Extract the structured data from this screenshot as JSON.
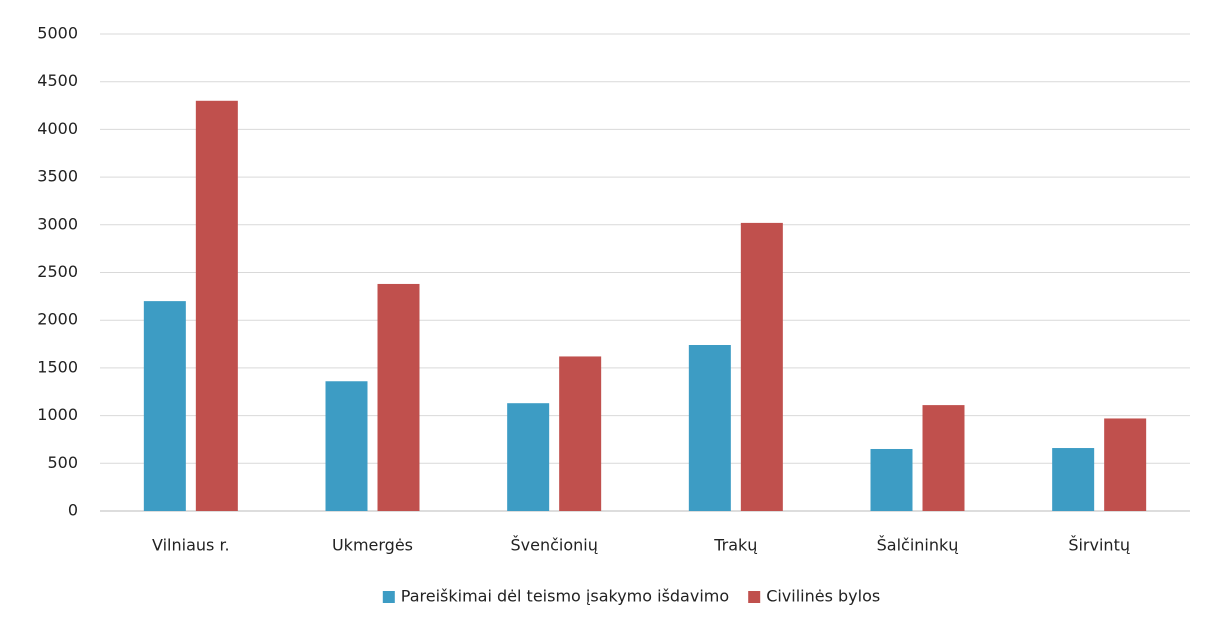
{
  "chart_data": {
    "type": "bar",
    "categories": [
      "Vilniaus r.",
      "Ukmergės",
      "Švenčionių",
      "Trakų",
      "Šalčininkų",
      "Širvintų"
    ],
    "series": [
      {
        "name": "Pareiškimai dėl teismo įsakymo išdavimo",
        "color": "#3d9cc4",
        "values": [
          2200,
          1360,
          1130,
          1740,
          650,
          660
        ]
      },
      {
        "name": "Civilinės bylos",
        "color": "#c0504d",
        "values": [
          4300,
          2380,
          1620,
          3020,
          1110,
          970
        ]
      }
    ],
    "ylim": [
      0,
      5000
    ],
    "yticks": [
      0,
      500,
      1000,
      1500,
      2000,
      2500,
      3000,
      3500,
      4000,
      4500,
      5000
    ],
    "grid": true,
    "legend": "bottom"
  }
}
